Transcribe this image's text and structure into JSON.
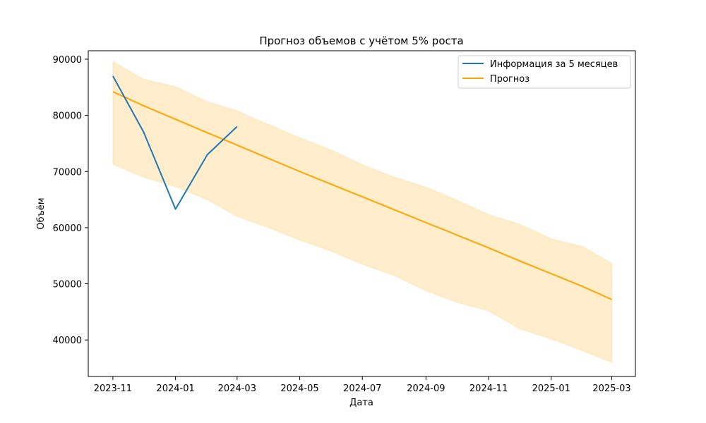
{
  "chart_data": {
    "type": "line",
    "title": "Прогноз объемов с учётом 5% роста",
    "xlabel": "Дата",
    "ylabel": "Объём",
    "x_tick_labels": [
      "2023-11",
      "2024-01",
      "2024-03",
      "2024-05",
      "2024-07",
      "2024-09",
      "2024-11",
      "2025-01",
      "2025-03"
    ],
    "y_ticks": [
      40000,
      50000,
      60000,
      70000,
      80000,
      90000
    ],
    "ylim": [
      33500,
      91500
    ],
    "xlim": [
      "2023-10-08",
      "2025-03-24"
    ],
    "legend_position": "top-right",
    "grid": false,
    "series": [
      {
        "name": "Информация за 5 месяцев",
        "color": "#1f77b4",
        "points": [
          {
            "x": "2023-11-01",
            "y": 87000
          },
          {
            "x": "2023-12-01",
            "y": 77000
          },
          {
            "x": "2024-01-01",
            "y": 63300
          },
          {
            "x": "2024-02-01",
            "y": 73000
          },
          {
            "x": "2024-03-01",
            "y": 78000
          }
        ]
      },
      {
        "name": "Прогноз",
        "color": "#ffa500",
        "band_color": "#ffa500",
        "points": [
          {
            "x": "2023-11-01",
            "y": 84200,
            "low": 71300,
            "high": 89600
          },
          {
            "x": "2023-12-01",
            "y": 81700,
            "low": 69000,
            "high": 86400
          },
          {
            "x": "2024-01-01",
            "y": 79300,
            "low": 67300,
            "high": 85100
          },
          {
            "x": "2024-02-01",
            "y": 76900,
            "low": 65000,
            "high": 82400
          },
          {
            "x": "2024-03-01",
            "y": 74700,
            "low": 62000,
            "high": 80800
          },
          {
            "x": "2024-04-01",
            "y": 72300,
            "low": 60000,
            "high": 78300
          },
          {
            "x": "2024-05-01",
            "y": 70000,
            "low": 57800,
            "high": 76000
          },
          {
            "x": "2024-06-01",
            "y": 67700,
            "low": 55800,
            "high": 73800
          },
          {
            "x": "2024-07-01",
            "y": 65500,
            "low": 53500,
            "high": 71200
          },
          {
            "x": "2024-08-01",
            "y": 63200,
            "low": 51500,
            "high": 69000
          },
          {
            "x": "2024-09-01",
            "y": 60900,
            "low": 48800,
            "high": 67200
          },
          {
            "x": "2024-10-01",
            "y": 58700,
            "low": 46700,
            "high": 64900
          },
          {
            "x": "2024-11-01",
            "y": 56400,
            "low": 45200,
            "high": 62300
          },
          {
            "x": "2024-12-01",
            "y": 54100,
            "low": 42000,
            "high": 60600
          },
          {
            "x": "2025-01-01",
            "y": 51800,
            "low": 40200,
            "high": 58000
          },
          {
            "x": "2025-02-01",
            "y": 49500,
            "low": 38100,
            "high": 56600
          },
          {
            "x": "2025-03-01",
            "y": 47200,
            "low": 36000,
            "high": 53600
          }
        ]
      }
    ]
  }
}
